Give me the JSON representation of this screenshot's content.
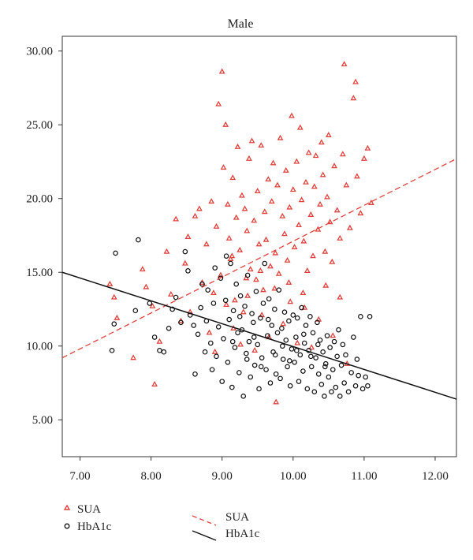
{
  "chart_data": {
    "type": "scatter",
    "title": "Male",
    "xlabel": "",
    "ylabel": "",
    "xlim": [
      6.75,
      12.3
    ],
    "ylim": [
      2.5,
      31.0
    ],
    "x_ticks": [
      "7.00",
      "8.00",
      "9.00",
      "10.00",
      "11.00",
      "12.00"
    ],
    "y_ticks": [
      "5.00",
      "10.00",
      "15.00",
      "20.00",
      "25.00",
      "30.00"
    ],
    "legend": {
      "markers": [
        "SUA",
        "HbA1c"
      ],
      "lines": [
        "SUA",
        "HbA1c"
      ]
    },
    "colors": {
      "SUA": "#e0413c",
      "HbA1c": "#111111"
    },
    "series": [
      {
        "name": "SUA",
        "marker": "triangle",
        "points": [
          [
            7.42,
            14.2
          ],
          [
            7.48,
            13.3
          ],
          [
            7.52,
            11.9
          ],
          [
            7.75,
            9.2
          ],
          [
            7.88,
            15.2
          ],
          [
            7.93,
            14.0
          ],
          [
            8.02,
            12.7
          ],
          [
            8.05,
            7.4
          ],
          [
            8.12,
            10.3
          ],
          [
            8.22,
            16.4
          ],
          [
            8.28,
            13.5
          ],
          [
            8.35,
            18.6
          ],
          [
            8.42,
            11.7
          ],
          [
            8.48,
            15.6
          ],
          [
            8.52,
            17.4
          ],
          [
            8.55,
            12.3
          ],
          [
            8.62,
            18.8
          ],
          [
            8.68,
            19.3
          ],
          [
            8.72,
            14.3
          ],
          [
            8.78,
            16.9
          ],
          [
            8.82,
            10.9
          ],
          [
            8.85,
            19.8
          ],
          [
            8.88,
            13.6
          ],
          [
            8.92,
            18.1
          ],
          [
            8.95,
            26.4
          ],
          [
            9.0,
            28.6
          ],
          [
            9.02,
            22.1
          ],
          [
            9.05,
            25.0
          ],
          [
            9.08,
            19.6
          ],
          [
            9.1,
            17.3
          ],
          [
            9.12,
            15.9
          ],
          [
            9.15,
            21.4
          ],
          [
            9.18,
            13.1
          ],
          [
            9.2,
            18.7
          ],
          [
            9.22,
            23.5
          ],
          [
            9.25,
            16.5
          ],
          [
            9.28,
            20.2
          ],
          [
            9.3,
            12.3
          ],
          [
            9.32,
            19.3
          ],
          [
            9.35,
            17.8
          ],
          [
            9.38,
            22.7
          ],
          [
            9.4,
            15.2
          ],
          [
            9.42,
            23.9
          ],
          [
            9.45,
            18.5
          ],
          [
            9.48,
            14.5
          ],
          [
            9.5,
            20.5
          ],
          [
            9.52,
            16.9
          ],
          [
            9.55,
            23.6
          ],
          [
            9.58,
            13.8
          ],
          [
            9.6,
            19.1
          ],
          [
            9.62,
            17.2
          ],
          [
            9.65,
            21.3
          ],
          [
            9.68,
            15.4
          ],
          [
            9.7,
            19.8
          ],
          [
            9.72,
            22.4
          ],
          [
            9.75,
            16.3
          ],
          [
            9.78,
            20.9
          ],
          [
            9.8,
            14.9
          ],
          [
            9.82,
            24.1
          ],
          [
            9.85,
            18.8
          ],
          [
            9.88,
            17.6
          ],
          [
            9.9,
            21.9
          ],
          [
            9.92,
            15.8
          ],
          [
            9.95,
            19.4
          ],
          [
            9.98,
            25.6
          ],
          [
            10.0,
            20.6
          ],
          [
            10.02,
            16.7
          ],
          [
            10.05,
            22.5
          ],
          [
            10.08,
            18.2
          ],
          [
            10.1,
            24.8
          ],
          [
            10.12,
            19.9
          ],
          [
            10.15,
            17.1
          ],
          [
            10.18,
            21.1
          ],
          [
            10.2,
            15.1
          ],
          [
            10.22,
            23.1
          ],
          [
            10.25,
            18.9
          ],
          [
            10.28,
            16.1
          ],
          [
            10.3,
            20.8
          ],
          [
            10.32,
            22.9
          ],
          [
            10.35,
            17.9
          ],
          [
            10.38,
            19.6
          ],
          [
            10.4,
            23.8
          ],
          [
            10.42,
            21.6
          ],
          [
            10.45,
            16.4
          ],
          [
            10.48,
            20.1
          ],
          [
            10.5,
            24.3
          ],
          [
            10.52,
            18.4
          ],
          [
            10.55,
            15.7
          ],
          [
            10.58,
            22.2
          ],
          [
            10.62,
            19.2
          ],
          [
            10.66,
            17.3
          ],
          [
            10.7,
            23.0
          ],
          [
            10.72,
            29.1
          ],
          [
            10.75,
            20.9
          ],
          [
            10.8,
            18.0
          ],
          [
            10.85,
            26.8
          ],
          [
            10.88,
            27.9
          ],
          [
            10.9,
            21.5
          ],
          [
            10.95,
            19.0
          ],
          [
            11.0,
            22.7
          ],
          [
            11.05,
            23.4
          ],
          [
            11.1,
            19.7
          ],
          [
            9.06,
            12.8
          ],
          [
            9.16,
            11.2
          ],
          [
            9.26,
            10.1
          ],
          [
            9.36,
            13.4
          ],
          [
            9.46,
            9.7
          ],
          [
            9.56,
            12.1
          ],
          [
            9.66,
            10.6
          ],
          [
            9.76,
            6.2
          ],
          [
            9.86,
            11.5
          ],
          [
            9.96,
            13.0
          ],
          [
            10.06,
            10.2
          ],
          [
            10.16,
            12.6
          ],
          [
            10.26,
            9.9
          ],
          [
            10.36,
            11.8
          ],
          [
            10.46,
            14.1
          ],
          [
            10.56,
            10.7
          ],
          [
            10.66,
            13.3
          ],
          [
            10.76,
            8.8
          ],
          [
            8.9,
            9.6
          ],
          [
            8.98,
            14.8
          ],
          [
            9.14,
            16.1
          ],
          [
            9.34,
            14.6
          ],
          [
            9.54,
            15.1
          ],
          [
            9.74,
            13.9
          ],
          [
            9.94,
            14.3
          ],
          [
            10.14,
            13.6
          ]
        ]
      },
      {
        "name": "HbA1c",
        "marker": "circle",
        "points": [
          [
            7.45,
            9.7
          ],
          [
            7.48,
            11.5
          ],
          [
            7.5,
            16.3
          ],
          [
            7.82,
            17.2
          ],
          [
            7.78,
            12.4
          ],
          [
            7.98,
            12.9
          ],
          [
            8.05,
            10.6
          ],
          [
            8.12,
            9.7
          ],
          [
            8.18,
            9.6
          ],
          [
            8.25,
            11.2
          ],
          [
            8.3,
            12.5
          ],
          [
            8.35,
            13.3
          ],
          [
            8.42,
            11.6
          ],
          [
            8.48,
            16.4
          ],
          [
            8.52,
            15.1
          ],
          [
            8.55,
            12.1
          ],
          [
            8.6,
            11.4
          ],
          [
            8.62,
            8.1
          ],
          [
            8.66,
            10.8
          ],
          [
            8.7,
            12.6
          ],
          [
            8.72,
            14.2
          ],
          [
            8.76,
            9.6
          ],
          [
            8.78,
            11.7
          ],
          [
            8.8,
            13.8
          ],
          [
            8.84,
            10.2
          ],
          [
            8.86,
            8.4
          ],
          [
            8.88,
            12.9
          ],
          [
            8.9,
            15.3
          ],
          [
            8.92,
            9.3
          ],
          [
            8.95,
            11.3
          ],
          [
            8.98,
            14.6
          ],
          [
            9.0,
            7.6
          ],
          [
            9.02,
            10.5
          ],
          [
            9.05,
            13.1
          ],
          [
            9.06,
            16.1
          ],
          [
            9.08,
            8.9
          ],
          [
            9.1,
            11.8
          ],
          [
            9.12,
            15.6
          ],
          [
            9.14,
            7.2
          ],
          [
            9.16,
            12.4
          ],
          [
            9.18,
            9.9
          ],
          [
            9.2,
            14.2
          ],
          [
            9.22,
            10.9
          ],
          [
            9.24,
            8.2
          ],
          [
            9.26,
            13.4
          ],
          [
            9.28,
            11.1
          ],
          [
            9.3,
            6.6
          ],
          [
            9.32,
            12.7
          ],
          [
            9.34,
            9.5
          ],
          [
            9.36,
            14.8
          ],
          [
            9.38,
            10.3
          ],
          [
            9.4,
            7.9
          ],
          [
            9.42,
            12.2
          ],
          [
            9.44,
            11.6
          ],
          [
            9.46,
            8.7
          ],
          [
            9.48,
            13.7
          ],
          [
            9.5,
            10.1
          ],
          [
            9.52,
            7.1
          ],
          [
            9.54,
            11.9
          ],
          [
            9.56,
            9.2
          ],
          [
            9.58,
            12.9
          ],
          [
            9.6,
            15.6
          ],
          [
            9.62,
            8.4
          ],
          [
            9.64,
            10.7
          ],
          [
            9.66,
            13.2
          ],
          [
            9.68,
            7.5
          ],
          [
            9.7,
            11.4
          ],
          [
            9.72,
            9.6
          ],
          [
            9.74,
            12.5
          ],
          [
            9.76,
            8.1
          ],
          [
            9.78,
            10.9
          ],
          [
            9.8,
            13.8
          ],
          [
            9.82,
            7.8
          ],
          [
            9.84,
            11.2
          ],
          [
            9.86,
            9.1
          ],
          [
            9.88,
            12.3
          ],
          [
            9.9,
            10.4
          ],
          [
            9.92,
            8.6
          ],
          [
            9.94,
            11.7
          ],
          [
            9.96,
            7.3
          ],
          [
            9.98,
            9.8
          ],
          [
            10.0,
            12.1
          ],
          [
            10.02,
            8.9
          ],
          [
            10.04,
            10.6
          ],
          [
            10.06,
            11.9
          ],
          [
            10.08,
            7.6
          ],
          [
            10.1,
            9.4
          ],
          [
            10.12,
            12.6
          ],
          [
            10.14,
            8.3
          ],
          [
            10.16,
            10.2
          ],
          [
            10.18,
            11.4
          ],
          [
            10.2,
            7.1
          ],
          [
            10.22,
            9.7
          ],
          [
            10.24,
            12.0
          ],
          [
            10.26,
            8.6
          ],
          [
            10.28,
            10.9
          ],
          [
            10.3,
            6.9
          ],
          [
            10.32,
            9.2
          ],
          [
            10.34,
            11.6
          ],
          [
            10.36,
            8.1
          ],
          [
            10.38,
            10.4
          ],
          [
            10.4,
            7.4
          ],
          [
            10.42,
            9.6
          ],
          [
            10.44,
            6.6
          ],
          [
            10.46,
            8.8
          ],
          [
            10.48,
            10.7
          ],
          [
            10.5,
            7.9
          ],
          [
            10.52,
            9.9
          ],
          [
            10.54,
            6.9
          ],
          [
            10.56,
            8.4
          ],
          [
            10.58,
            10.3
          ],
          [
            10.6,
            7.2
          ],
          [
            10.62,
            9.3
          ],
          [
            10.64,
            11.1
          ],
          [
            10.66,
            6.6
          ],
          [
            10.68,
            8.7
          ],
          [
            10.7,
            10.1
          ],
          [
            10.72,
            7.5
          ],
          [
            10.74,
            9.4
          ],
          [
            10.78,
            6.9
          ],
          [
            10.82,
            8.2
          ],
          [
            10.85,
            10.6
          ],
          [
            10.88,
            7.3
          ],
          [
            10.9,
            9.1
          ],
          [
            10.92,
            8.0
          ],
          [
            10.95,
            12.0
          ],
          [
            10.98,
            7.1
          ],
          [
            11.02,
            7.9
          ],
          [
            11.05,
            7.3
          ],
          [
            11.08,
            12.0
          ],
          [
            9.15,
            10.3
          ],
          [
            9.25,
            12.0
          ],
          [
            9.35,
            9.1
          ],
          [
            9.45,
            10.6
          ],
          [
            9.55,
            8.6
          ],
          [
            9.65,
            11.8
          ],
          [
            9.75,
            9.4
          ],
          [
            9.85,
            10.0
          ],
          [
            9.95,
            9.0
          ],
          [
            10.05,
            9.7
          ],
          [
            10.15,
            10.8
          ],
          [
            10.25,
            9.3
          ],
          [
            10.35,
            10.1
          ],
          [
            10.45,
            8.6
          ]
        ]
      }
    ],
    "regression": [
      {
        "name": "SUA",
        "style": "dashed",
        "x": [
          6.75,
          12.3
        ],
        "y": [
          9.2,
          22.7
        ]
      },
      {
        "name": "HbA1c",
        "style": "solid",
        "x": [
          6.75,
          12.3
        ],
        "y": [
          15.0,
          6.4
        ]
      }
    ]
  }
}
